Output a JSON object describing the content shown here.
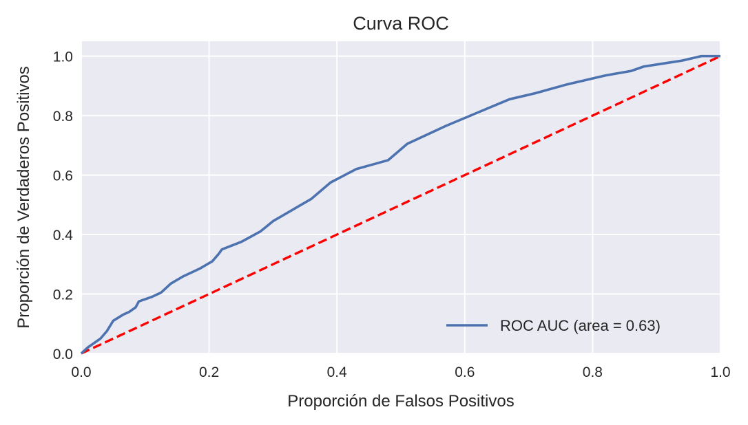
{
  "chart_data": {
    "type": "line",
    "title": "Curva ROC",
    "xlabel": "Proporción de Falsos Positivos",
    "ylabel": "Proporción de Verdaderos Positivos",
    "xlim": [
      0.0,
      1.0
    ],
    "ylim": [
      0.0,
      1.05
    ],
    "xticks": [
      "0.0",
      "0.2",
      "0.4",
      "0.6",
      "0.8",
      "1.0"
    ],
    "yticks": [
      "0.0",
      "0.2",
      "0.4",
      "0.6",
      "0.8",
      "1.0"
    ],
    "grid": true,
    "legend_position": "bottom-right",
    "series": [
      {
        "name": "ROC AUC (area = 0.63)",
        "color": "#4C72B0",
        "style": "solid",
        "x": [
          0.0,
          0.01,
          0.02,
          0.03,
          0.04,
          0.05,
          0.065,
          0.075,
          0.085,
          0.09,
          0.11,
          0.125,
          0.13,
          0.14,
          0.16,
          0.185,
          0.205,
          0.215,
          0.22,
          0.25,
          0.28,
          0.3,
          0.32,
          0.34,
          0.36,
          0.39,
          0.43,
          0.455,
          0.48,
          0.51,
          0.57,
          0.62,
          0.67,
          0.71,
          0.76,
          0.82,
          0.86,
          0.88,
          0.91,
          0.94,
          0.96,
          0.97,
          1.0
        ],
        "y": [
          0.0,
          0.02,
          0.035,
          0.05,
          0.075,
          0.11,
          0.13,
          0.14,
          0.155,
          0.175,
          0.19,
          0.205,
          0.215,
          0.235,
          0.26,
          0.285,
          0.31,
          0.335,
          0.35,
          0.375,
          0.41,
          0.445,
          0.47,
          0.495,
          0.52,
          0.575,
          0.62,
          0.635,
          0.65,
          0.705,
          0.765,
          0.81,
          0.855,
          0.875,
          0.905,
          0.935,
          0.95,
          0.965,
          0.975,
          0.985,
          0.995,
          1.0,
          1.0
        ]
      },
      {
        "name": "",
        "color": "#FF0000",
        "style": "dashed",
        "x": [
          0.0,
          1.0
        ],
        "y": [
          0.0,
          1.0
        ]
      }
    ]
  }
}
